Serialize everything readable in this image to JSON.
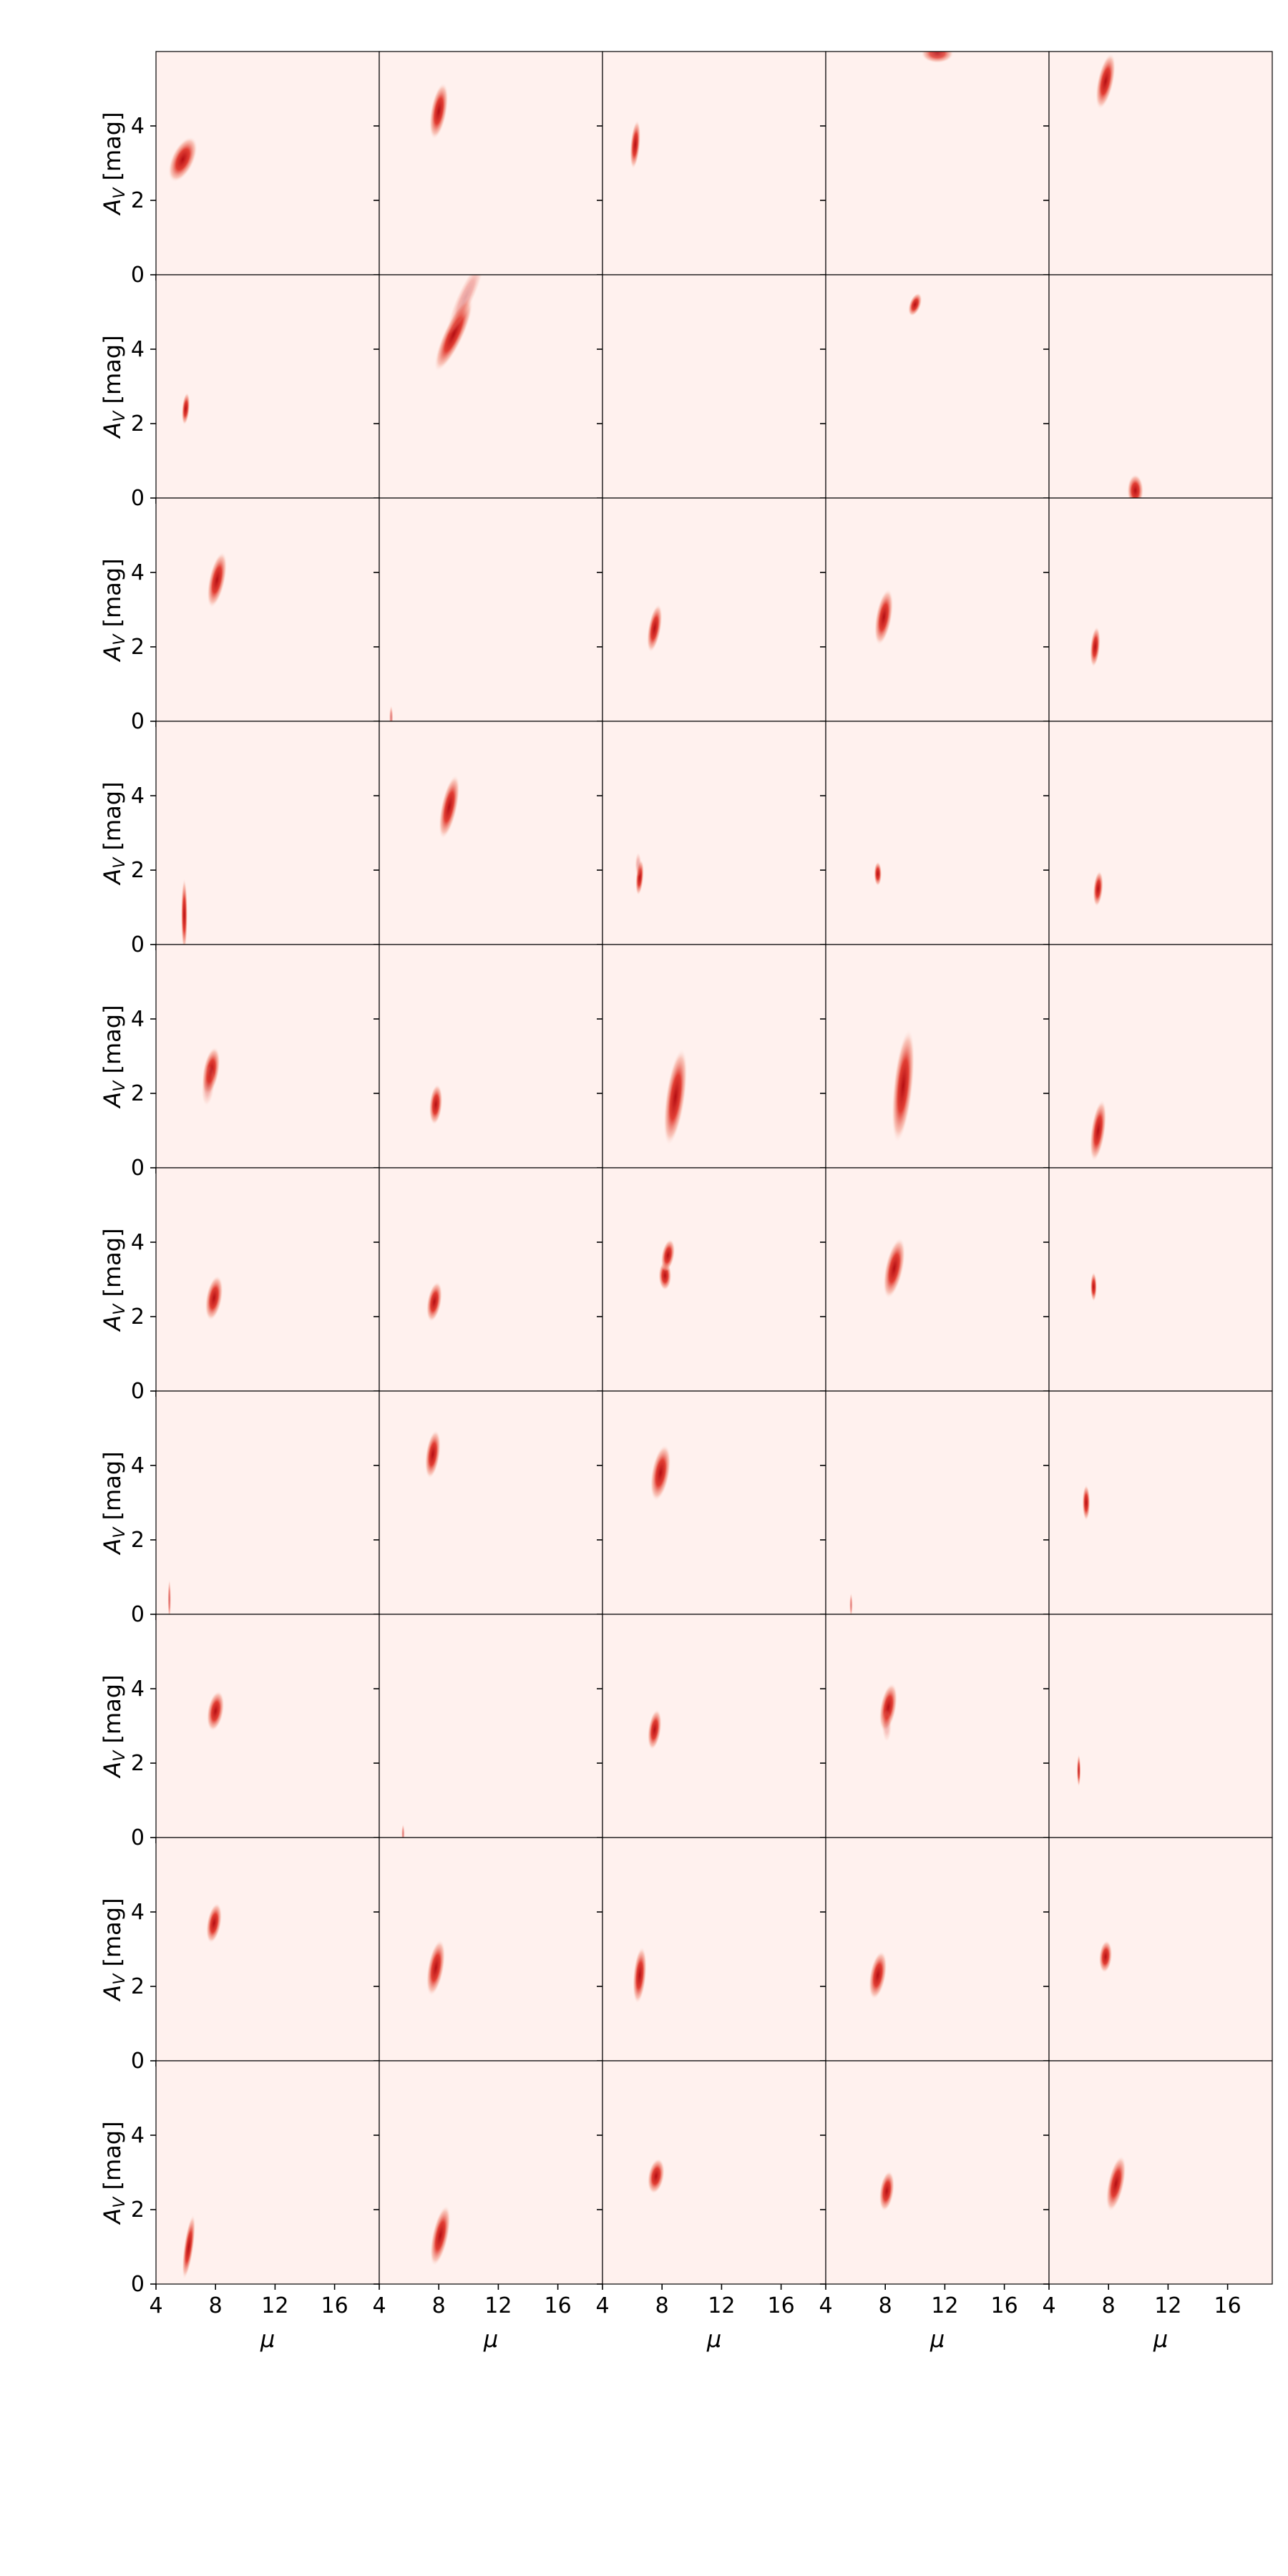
{
  "chart_data": {
    "type": "heatmap",
    "title": "",
    "layout": {
      "rows": 10,
      "cols": 5,
      "shared_axes": true
    },
    "xlabel": "μ",
    "ylabel_main": "A",
    "ylabel_sub": "V",
    "ylabel_unit": " [mag]",
    "xlim": [
      4,
      19
    ],
    "ylim": [
      0,
      6
    ],
    "xticks": [
      4,
      8,
      12,
      16
    ],
    "yticks": [
      0,
      2,
      4
    ],
    "xtick_labels": [
      "4",
      "8",
      "12",
      "16"
    ],
    "ytick_labels": [
      "0",
      "2",
      "4"
    ],
    "grid": false,
    "legend": "none",
    "colors": {
      "background": "#fff1ee",
      "density_peak": "#b50d12",
      "density_mid": "#e0352a",
      "density_faint": "#f4a08e",
      "frame": "#000000"
    },
    "panels": [
      {
        "row": 0,
        "col": 0,
        "blobs": [
          {
            "mu": 5.8,
            "av": 3.1,
            "smu": 0.35,
            "sav": 0.3,
            "tilt": 25,
            "intensity": 1.0
          }
        ]
      },
      {
        "row": 0,
        "col": 1,
        "blobs": [
          {
            "mu": 8.0,
            "av": 4.4,
            "smu": 0.25,
            "sav": 0.35,
            "tilt": 10,
            "intensity": 1.0
          }
        ]
      },
      {
        "row": 0,
        "col": 2,
        "blobs": [
          {
            "mu": 6.2,
            "av": 3.5,
            "smu": 0.15,
            "sav": 0.3,
            "tilt": 5,
            "intensity": 1.0
          }
        ]
      },
      {
        "row": 0,
        "col": 3,
        "blobs": [
          {
            "mu": 11.5,
            "av": 5.95,
            "smu": 0.5,
            "sav": 0.12,
            "tilt": 0,
            "intensity": 0.85
          }
        ]
      },
      {
        "row": 0,
        "col": 4,
        "blobs": [
          {
            "mu": 7.8,
            "av": 5.2,
            "smu": 0.25,
            "sav": 0.35,
            "tilt": 12,
            "intensity": 1.0
          }
        ]
      },
      {
        "row": 1,
        "col": 0,
        "blobs": [
          {
            "mu": 6.0,
            "av": 2.4,
            "smu": 0.12,
            "sav": 0.2,
            "tilt": 5,
            "intensity": 1.0
          }
        ]
      },
      {
        "row": 1,
        "col": 1,
        "blobs": [
          {
            "mu": 9.0,
            "av": 4.4,
            "smu": 0.3,
            "sav": 0.5,
            "tilt": 25,
            "intensity": 1.0
          },
          {
            "mu": 9.8,
            "av": 5.4,
            "smu": 0.25,
            "sav": 0.5,
            "tilt": 25,
            "intensity": 0.35
          }
        ]
      },
      {
        "row": 1,
        "col": 2,
        "blobs": []
      },
      {
        "row": 1,
        "col": 3,
        "blobs": [
          {
            "mu": 10.0,
            "av": 5.2,
            "smu": 0.18,
            "sav": 0.15,
            "tilt": 20,
            "intensity": 1.0
          }
        ]
      },
      {
        "row": 1,
        "col": 4,
        "blobs": [
          {
            "mu": 9.8,
            "av": 0.2,
            "smu": 0.25,
            "sav": 0.2,
            "tilt": 0,
            "intensity": 1.0
          }
        ]
      },
      {
        "row": 2,
        "col": 0,
        "blobs": [
          {
            "mu": 8.1,
            "av": 3.8,
            "smu": 0.25,
            "sav": 0.35,
            "tilt": 12,
            "intensity": 1.0
          }
        ]
      },
      {
        "row": 2,
        "col": 1,
        "blobs": [
          {
            "mu": 4.8,
            "av": 0.1,
            "smu": 0.06,
            "sav": 0.15,
            "tilt": 0,
            "intensity": 0.5
          }
        ]
      },
      {
        "row": 2,
        "col": 2,
        "blobs": [
          {
            "mu": 7.5,
            "av": 2.5,
            "smu": 0.2,
            "sav": 0.3,
            "tilt": 10,
            "intensity": 1.0
          }
        ]
      },
      {
        "row": 2,
        "col": 3,
        "blobs": [
          {
            "mu": 7.9,
            "av": 2.8,
            "smu": 0.25,
            "sav": 0.35,
            "tilt": 10,
            "intensity": 1.0
          }
        ]
      },
      {
        "row": 2,
        "col": 4,
        "blobs": [
          {
            "mu": 7.1,
            "av": 2.0,
            "smu": 0.15,
            "sav": 0.25,
            "tilt": 5,
            "intensity": 1.0
          }
        ]
      },
      {
        "row": 3,
        "col": 0,
        "blobs": [
          {
            "mu": 5.9,
            "av": 0.8,
            "smu": 0.1,
            "sav": 0.45,
            "tilt": 0,
            "intensity": 1.0
          }
        ]
      },
      {
        "row": 3,
        "col": 1,
        "blobs": [
          {
            "mu": 8.7,
            "av": 3.7,
            "smu": 0.25,
            "sav": 0.4,
            "tilt": 12,
            "intensity": 1.0
          }
        ]
      },
      {
        "row": 3,
        "col": 2,
        "blobs": [
          {
            "mu": 6.5,
            "av": 1.8,
            "smu": 0.12,
            "sav": 0.22,
            "tilt": 5,
            "intensity": 1.0
          },
          {
            "mu": 6.4,
            "av": 2.15,
            "smu": 0.1,
            "sav": 0.15,
            "tilt": 0,
            "intensity": 0.3
          }
        ]
      },
      {
        "row": 3,
        "col": 3,
        "blobs": [
          {
            "mu": 7.5,
            "av": 1.9,
            "smu": 0.12,
            "sav": 0.15,
            "tilt": 0,
            "intensity": 1.0
          }
        ]
      },
      {
        "row": 3,
        "col": 4,
        "blobs": [
          {
            "mu": 7.3,
            "av": 1.5,
            "smu": 0.15,
            "sav": 0.22,
            "tilt": 5,
            "intensity": 1.0
          }
        ]
      },
      {
        "row": 4,
        "col": 0,
        "blobs": [
          {
            "mu": 7.7,
            "av": 2.6,
            "smu": 0.25,
            "sav": 0.3,
            "tilt": 10,
            "intensity": 1.0
          },
          {
            "mu": 7.5,
            "av": 2.2,
            "smu": 0.2,
            "sav": 0.25,
            "tilt": 5,
            "intensity": 0.3
          }
        ]
      },
      {
        "row": 4,
        "col": 1,
        "blobs": [
          {
            "mu": 7.8,
            "av": 1.7,
            "smu": 0.2,
            "sav": 0.25,
            "tilt": 5,
            "intensity": 1.0
          }
        ]
      },
      {
        "row": 4,
        "col": 2,
        "blobs": [
          {
            "mu": 8.9,
            "av": 1.9,
            "smu": 0.3,
            "sav": 0.6,
            "tilt": 8,
            "intensity": 1.0
          }
        ]
      },
      {
        "row": 4,
        "col": 3,
        "blobs": [
          {
            "mu": 9.2,
            "av": 2.2,
            "smu": 0.3,
            "sav": 0.7,
            "tilt": 6,
            "intensity": 1.0
          }
        ]
      },
      {
        "row": 4,
        "col": 4,
        "blobs": [
          {
            "mu": 7.3,
            "av": 1.0,
            "smu": 0.22,
            "sav": 0.38,
            "tilt": 8,
            "intensity": 1.0
          }
        ]
      },
      {
        "row": 5,
        "col": 0,
        "blobs": [
          {
            "mu": 7.9,
            "av": 2.5,
            "smu": 0.25,
            "sav": 0.28,
            "tilt": 10,
            "intensity": 1.0
          }
        ]
      },
      {
        "row": 5,
        "col": 1,
        "blobs": [
          {
            "mu": 7.7,
            "av": 2.4,
            "smu": 0.22,
            "sav": 0.25,
            "tilt": 10,
            "intensity": 1.0
          }
        ]
      },
      {
        "row": 5,
        "col": 2,
        "blobs": [
          {
            "mu": 8.2,
            "av": 3.1,
            "smu": 0.2,
            "sav": 0.18,
            "tilt": 0,
            "intensity": 1.0
          },
          {
            "mu": 8.4,
            "av": 3.65,
            "smu": 0.2,
            "sav": 0.2,
            "tilt": 10,
            "intensity": 1.0
          }
        ]
      },
      {
        "row": 5,
        "col": 3,
        "blobs": [
          {
            "mu": 8.6,
            "av": 3.3,
            "smu": 0.28,
            "sav": 0.38,
            "tilt": 12,
            "intensity": 1.0
          }
        ]
      },
      {
        "row": 5,
        "col": 4,
        "blobs": [
          {
            "mu": 7.0,
            "av": 2.8,
            "smu": 0.1,
            "sav": 0.18,
            "tilt": 0,
            "intensity": 1.0
          }
        ]
      },
      {
        "row": 6,
        "col": 0,
        "blobs": [
          {
            "mu": 4.9,
            "av": 0.4,
            "smu": 0.05,
            "sav": 0.25,
            "tilt": 0,
            "intensity": 0.6
          }
        ]
      },
      {
        "row": 6,
        "col": 1,
        "blobs": [
          {
            "mu": 7.6,
            "av": 4.3,
            "smu": 0.22,
            "sav": 0.3,
            "tilt": 8,
            "intensity": 1.0
          }
        ]
      },
      {
        "row": 6,
        "col": 2,
        "blobs": [
          {
            "mu": 7.9,
            "av": 3.8,
            "smu": 0.28,
            "sav": 0.35,
            "tilt": 10,
            "intensity": 1.0
          }
        ]
      },
      {
        "row": 6,
        "col": 3,
        "blobs": [
          {
            "mu": 5.7,
            "av": 0.25,
            "smu": 0.05,
            "sav": 0.15,
            "tilt": 0,
            "intensity": 0.5
          }
        ]
      },
      {
        "row": 6,
        "col": 4,
        "blobs": [
          {
            "mu": 6.5,
            "av": 3.0,
            "smu": 0.12,
            "sav": 0.22,
            "tilt": 0,
            "intensity": 1.0
          }
        ]
      },
      {
        "row": 7,
        "col": 0,
        "blobs": [
          {
            "mu": 8.0,
            "av": 3.4,
            "smu": 0.25,
            "sav": 0.25,
            "tilt": 10,
            "intensity": 1.0
          }
        ]
      },
      {
        "row": 7,
        "col": 1,
        "blobs": [
          {
            "mu": 5.6,
            "av": 0.1,
            "smu": 0.05,
            "sav": 0.12,
            "tilt": 0,
            "intensity": 0.5
          }
        ]
      },
      {
        "row": 7,
        "col": 2,
        "blobs": [
          {
            "mu": 7.5,
            "av": 2.9,
            "smu": 0.2,
            "sav": 0.25,
            "tilt": 8,
            "intensity": 1.0
          }
        ]
      },
      {
        "row": 7,
        "col": 3,
        "blobs": [
          {
            "mu": 8.2,
            "av": 3.5,
            "smu": 0.25,
            "sav": 0.3,
            "tilt": 10,
            "intensity": 1.0
          },
          {
            "mu": 8.1,
            "av": 3.0,
            "smu": 0.15,
            "sav": 0.2,
            "tilt": 0,
            "intensity": 0.25
          }
        ]
      },
      {
        "row": 7,
        "col": 4,
        "blobs": [
          {
            "mu": 6.0,
            "av": 1.8,
            "smu": 0.06,
            "sav": 0.2,
            "tilt": 0,
            "intensity": 0.9
          }
        ]
      },
      {
        "row": 8,
        "col": 0,
        "blobs": [
          {
            "mu": 7.9,
            "av": 3.7,
            "smu": 0.22,
            "sav": 0.25,
            "tilt": 10,
            "intensity": 1.0
          }
        ]
      },
      {
        "row": 8,
        "col": 1,
        "blobs": [
          {
            "mu": 7.8,
            "av": 2.5,
            "smu": 0.25,
            "sav": 0.35,
            "tilt": 10,
            "intensity": 1.0
          }
        ]
      },
      {
        "row": 8,
        "col": 2,
        "blobs": [
          {
            "mu": 6.5,
            "av": 2.3,
            "smu": 0.2,
            "sav": 0.35,
            "tilt": 5,
            "intensity": 1.0
          }
        ]
      },
      {
        "row": 8,
        "col": 3,
        "blobs": [
          {
            "mu": 7.5,
            "av": 2.3,
            "smu": 0.25,
            "sav": 0.3,
            "tilt": 10,
            "intensity": 1.0
          }
        ]
      },
      {
        "row": 8,
        "col": 4,
        "blobs": [
          {
            "mu": 7.8,
            "av": 2.8,
            "smu": 0.2,
            "sav": 0.2,
            "tilt": 5,
            "intensity": 1.0
          }
        ]
      },
      {
        "row": 9,
        "col": 0,
        "blobs": [
          {
            "mu": 6.2,
            "av": 1.0,
            "smu": 0.15,
            "sav": 0.4,
            "tilt": 8,
            "intensity": 1.0
          }
        ]
      },
      {
        "row": 9,
        "col": 1,
        "blobs": [
          {
            "mu": 8.1,
            "av": 1.3,
            "smu": 0.25,
            "sav": 0.38,
            "tilt": 12,
            "intensity": 1.0
          }
        ]
      },
      {
        "row": 9,
        "col": 2,
        "blobs": [
          {
            "mu": 7.6,
            "av": 2.9,
            "smu": 0.25,
            "sav": 0.22,
            "tilt": 10,
            "intensity": 1.0
          }
        ]
      },
      {
        "row": 9,
        "col": 3,
        "blobs": [
          {
            "mu": 8.1,
            "av": 2.5,
            "smu": 0.22,
            "sav": 0.25,
            "tilt": 8,
            "intensity": 1.0
          }
        ]
      },
      {
        "row": 9,
        "col": 4,
        "blobs": [
          {
            "mu": 8.5,
            "av": 2.7,
            "smu": 0.25,
            "sav": 0.35,
            "tilt": 12,
            "intensity": 1.0
          }
        ]
      }
    ]
  }
}
